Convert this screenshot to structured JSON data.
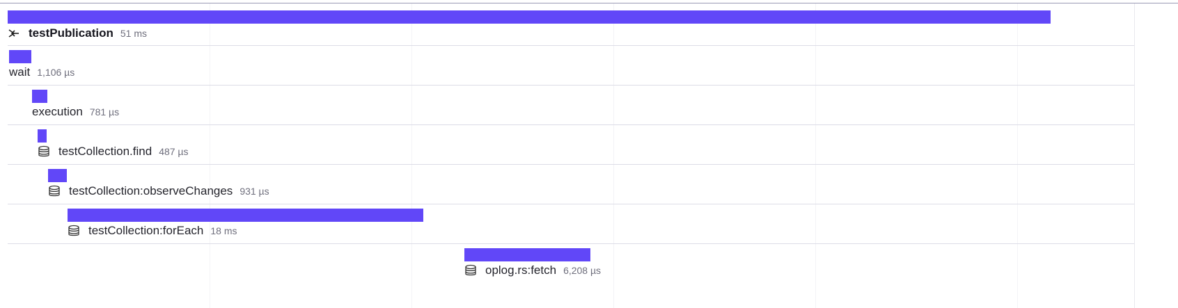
{
  "trace": {
    "root": {
      "name": "testPublication",
      "duration": "51 ms",
      "icon": "inbound-arrow-icon"
    },
    "spans": [
      {
        "name": "wait",
        "duration": "1,106 µs",
        "icon": ""
      },
      {
        "name": "execution",
        "duration": "781 µs",
        "icon": ""
      },
      {
        "name": "testCollection.find",
        "duration": "487 µs",
        "icon": "database-icon"
      },
      {
        "name": "testCollection:observeChanges",
        "duration": "931 µs",
        "icon": "database-icon"
      },
      {
        "name": "testCollection:forEach",
        "duration": "18 ms",
        "icon": "database-icon"
      },
      {
        "name": "oplog.rs:fetch",
        "duration": "6,208 µs",
        "icon": "database-icon"
      }
    ]
  },
  "colors": {
    "bar": "#6147f8",
    "separator": "#dcdce6"
  }
}
